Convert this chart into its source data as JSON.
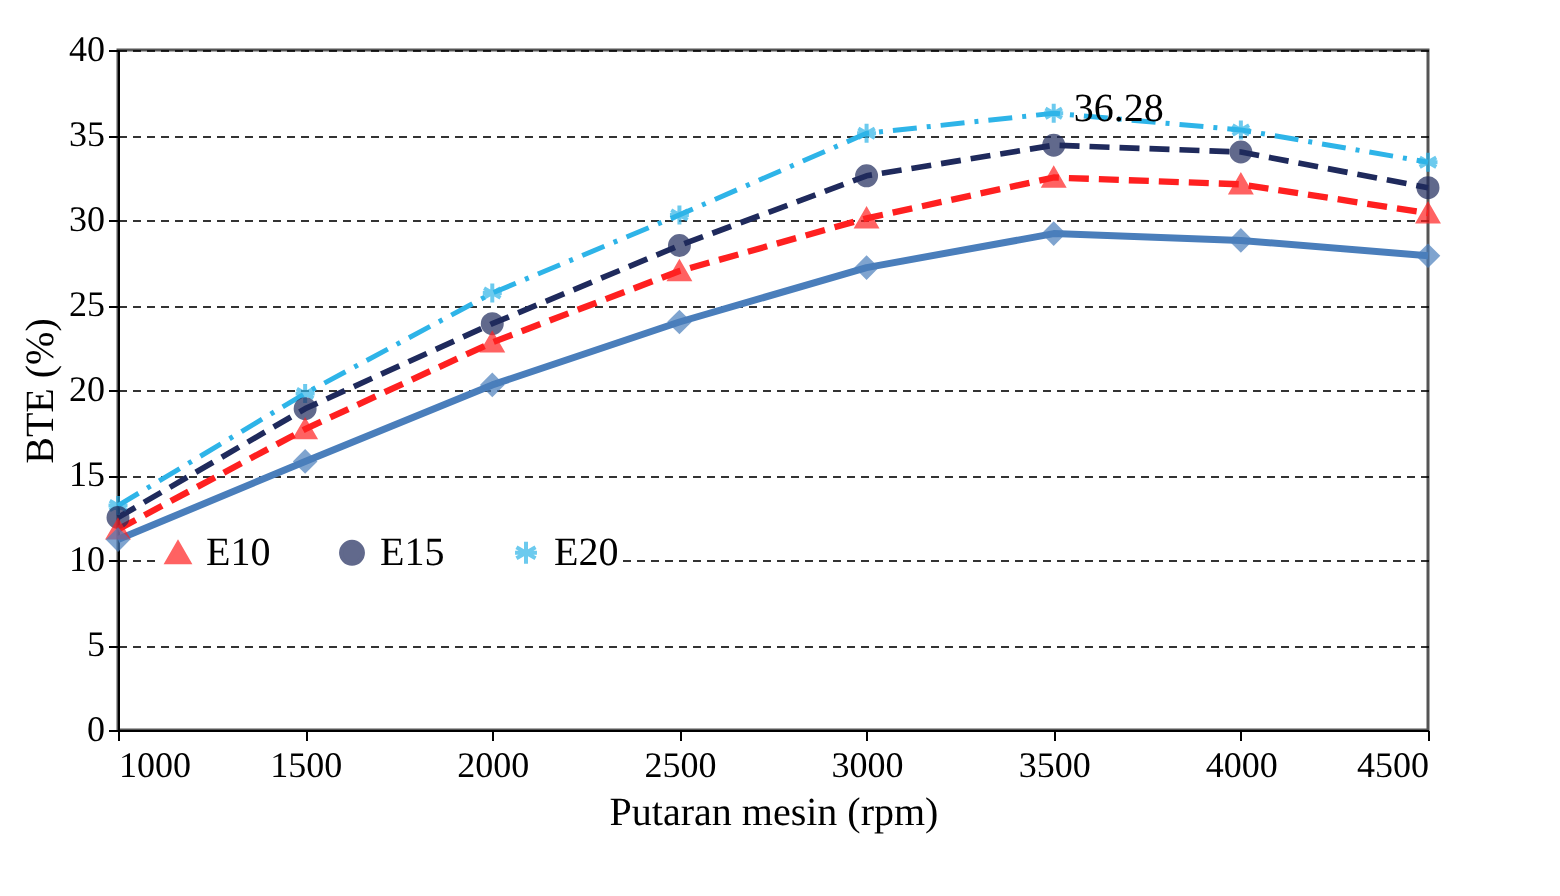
{
  "chart_data": {
    "type": "line",
    "xlabel": "Putaran mesin (rpm)",
    "ylabel": "BTE (%)",
    "x": [
      1000,
      1500,
      2000,
      2500,
      3000,
      3500,
      4000,
      4500
    ],
    "series": [
      {
        "color": "#4a7ebb",
        "marker": "diamond",
        "line_style": "solid",
        "values": [
          11.2,
          15.8,
          20.3,
          24.0,
          27.2,
          29.2,
          28.8,
          27.9
        ]
      },
      {
        "name": "E10",
        "color": "#ff2020",
        "marker": "triangle",
        "line_style": "dashed",
        "values": [
          11.8,
          17.7,
          22.8,
          27.0,
          30.1,
          32.5,
          32.1,
          30.4
        ]
      },
      {
        "name": "E15",
        "color": "#1f2a5c",
        "marker": "circle",
        "line_style": "dashed",
        "values": [
          12.5,
          18.9,
          23.9,
          28.5,
          32.6,
          34.4,
          34.0,
          31.9
        ]
      },
      {
        "name": "E20",
        "color": "#2eb4e8",
        "marker": "cross",
        "line_style": "dashdot",
        "values": [
          13.2,
          19.8,
          25.7,
          30.3,
          35.1,
          36.28,
          35.3,
          33.4
        ]
      }
    ],
    "annotations": [
      {
        "text": "36.28",
        "x": 3500,
        "y": 36.28
      }
    ],
    "xlim": [
      1000,
      4500
    ],
    "xticks": [
      1000,
      1500,
      2000,
      2500,
      3000,
      3500,
      4000,
      4500
    ],
    "ylim": [
      0,
      40
    ],
    "yticks": [
      0,
      5,
      10,
      15,
      20,
      25,
      30,
      35,
      40
    ],
    "grid": "y",
    "legend": "bottom"
  }
}
